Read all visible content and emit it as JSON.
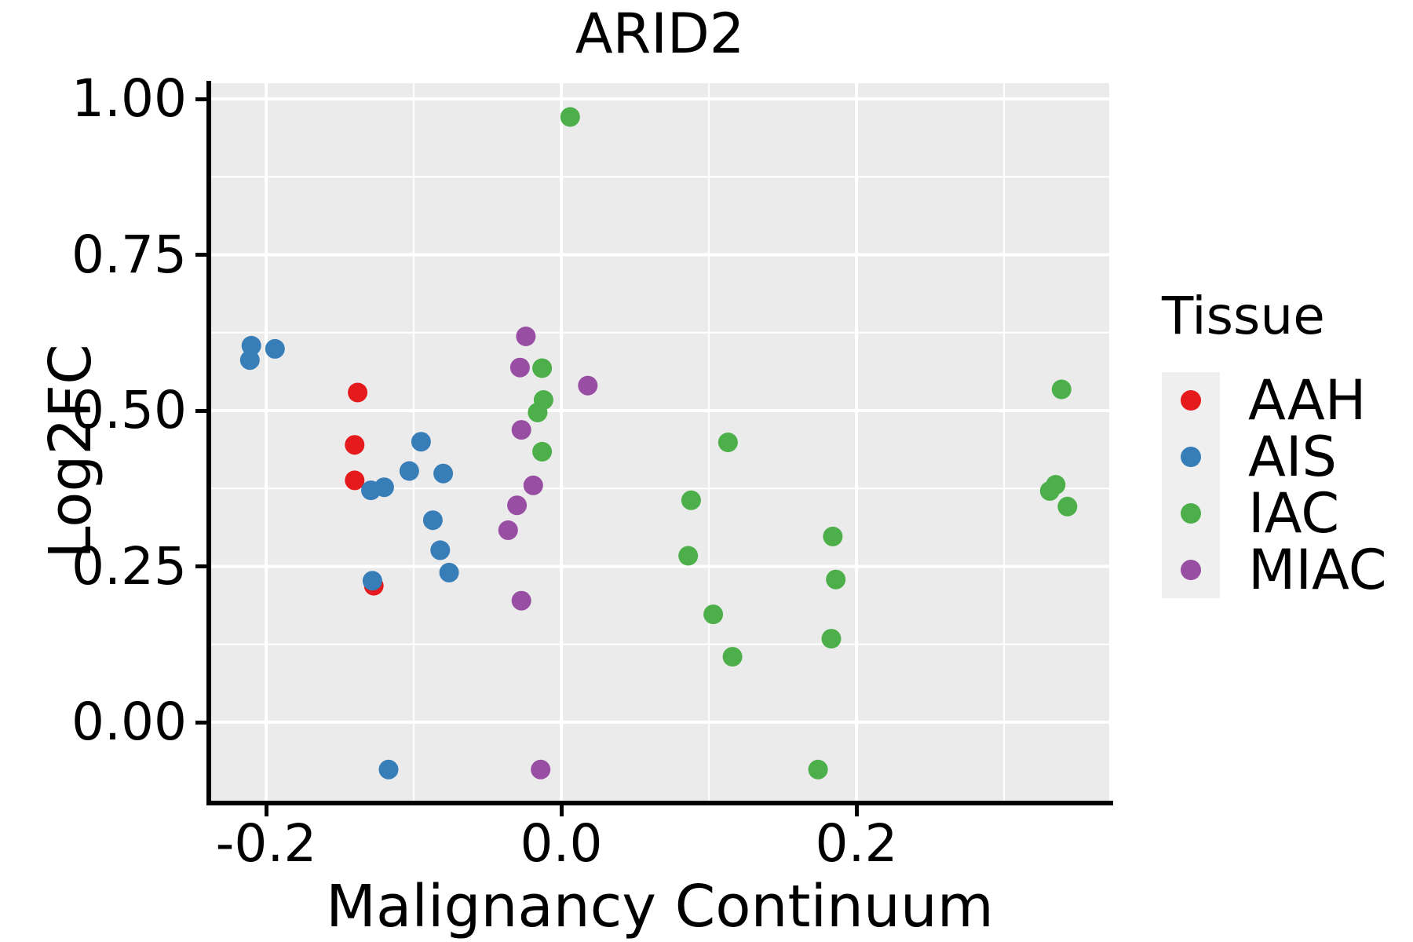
{
  "title": "ARID2",
  "axes": {
    "x": {
      "label": "Malignancy Continuum",
      "tick_labels": [
        "-0.2",
        "0.0",
        "0.2"
      ],
      "tick_values": [
        -0.2,
        0.0,
        0.2
      ],
      "minor_values": [
        -0.1,
        0.1,
        0.3
      ],
      "range": [
        -0.238,
        0.371
      ]
    },
    "y": {
      "label": "Log2FC",
      "tick_labels": [
        "0.00",
        "0.25",
        "0.50",
        "0.75",
        "1.00"
      ],
      "tick_values": [
        0.0,
        0.25,
        0.5,
        0.75,
        1.0
      ],
      "minor_values": [
        0.125,
        0.375,
        0.625,
        0.875
      ],
      "range": [
        -0.126,
        1.025
      ]
    }
  },
  "legend": {
    "title": "Tissue",
    "entries": [
      {
        "label": "AAH",
        "color": "#E41A1C"
      },
      {
        "label": "AIS",
        "color": "#377EB8"
      },
      {
        "label": "IAC",
        "color": "#4DAF4A"
      },
      {
        "label": "MIAC",
        "color": "#984EA3"
      }
    ]
  },
  "style_colors": {
    "panel_background": "#EBEBEB",
    "gridline": "#FFFFFF",
    "axis": "#000000",
    "legend_key_background": "#EFEFEF"
  },
  "chart_data": {
    "type": "scatter",
    "title": "ARID2",
    "xlabel": "Malignancy Continuum",
    "ylabel": "Log2FC",
    "xlim": [
      -0.238,
      0.371
    ],
    "ylim": [
      -0.126,
      1.025
    ],
    "grid": true,
    "legend_position": "right",
    "series": [
      {
        "name": "AAH",
        "color": "#E41A1C",
        "points": [
          [
            -0.138,
            0.529
          ],
          [
            -0.14,
            0.445
          ],
          [
            -0.14,
            0.388
          ],
          [
            -0.127,
            0.219
          ]
        ]
      },
      {
        "name": "AIS",
        "color": "#377EB8",
        "points": [
          [
            -0.21,
            0.604
          ],
          [
            -0.211,
            0.581
          ],
          [
            -0.194,
            0.599
          ],
          [
            -0.095,
            0.45
          ],
          [
            -0.103,
            0.403
          ],
          [
            -0.08,
            0.399
          ],
          [
            -0.129,
            0.372
          ],
          [
            -0.12,
            0.377
          ],
          [
            -0.087,
            0.324
          ],
          [
            -0.082,
            0.276
          ],
          [
            -0.076,
            0.24
          ],
          [
            -0.128,
            0.227
          ],
          [
            -0.117,
            -0.076
          ]
        ]
      },
      {
        "name": "IAC",
        "color": "#4DAF4A",
        "points": [
          [
            0.006,
            0.971
          ],
          [
            -0.013,
            0.568
          ],
          [
            -0.012,
            0.517
          ],
          [
            -0.016,
            0.497
          ],
          [
            -0.013,
            0.434
          ],
          [
            0.113,
            0.449
          ],
          [
            0.088,
            0.356
          ],
          [
            0.086,
            0.267
          ],
          [
            0.184,
            0.298
          ],
          [
            0.186,
            0.229
          ],
          [
            0.103,
            0.173
          ],
          [
            0.183,
            0.134
          ],
          [
            0.116,
            0.105
          ],
          [
            0.174,
            -0.076
          ],
          [
            0.339,
            0.534
          ],
          [
            0.335,
            0.381
          ],
          [
            0.331,
            0.371
          ],
          [
            0.343,
            0.346
          ]
        ]
      },
      {
        "name": "MIAC",
        "color": "#984EA3",
        "points": [
          [
            -0.024,
            0.619
          ],
          [
            -0.028,
            0.569
          ],
          [
            0.018,
            0.54
          ],
          [
            -0.027,
            0.469
          ],
          [
            -0.019,
            0.38
          ],
          [
            -0.03,
            0.348
          ],
          [
            -0.036,
            0.308
          ],
          [
            -0.027,
            0.195
          ],
          [
            -0.014,
            -0.076
          ]
        ]
      }
    ]
  }
}
